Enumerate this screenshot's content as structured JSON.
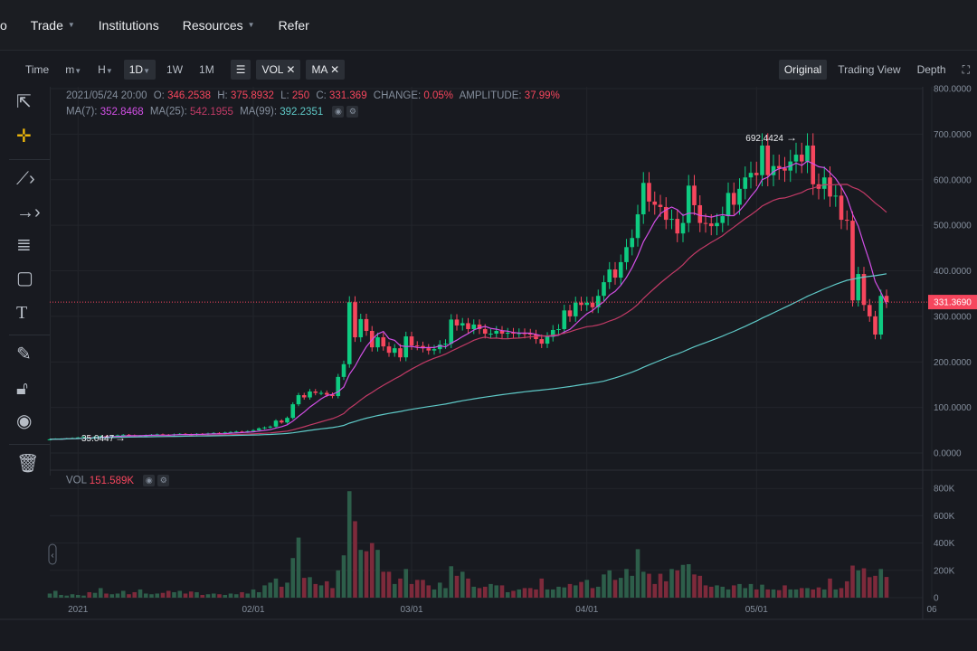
{
  "nav": {
    "partial_label": "o",
    "items": [
      {
        "label": "Trade",
        "dropdown": true
      },
      {
        "label": "Institutions",
        "dropdown": false
      },
      {
        "label": "Resources",
        "dropdown": true
      },
      {
        "label": "Refer",
        "dropdown": false
      }
    ]
  },
  "toolbar": {
    "time": "Time",
    "m": "m",
    "h": "H",
    "d1": "1D",
    "w1": "1W",
    "mo1": "1M",
    "vol_chip": "VOL",
    "ma_chip": "MA",
    "views": [
      "Original",
      "Trading View",
      "Depth"
    ],
    "active_view": "Original"
  },
  "tools": [
    "cursor-icon",
    "crosshair-icon",
    "trendline-icon",
    "arrow-icon",
    "fib-icon",
    "rectangle-icon",
    "text-icon",
    "edit-icon",
    "unlock-icon",
    "eye-icon",
    "trash-icon"
  ],
  "ohlc_info": {
    "datetime": "2021/05/24 20:00",
    "o_label": "O:",
    "o": "346.2538",
    "h_label": "H:",
    "h": "375.8932",
    "l_label": "L:",
    "l": "250",
    "c_label": "C:",
    "c": "331.369",
    "change_label": "CHANGE:",
    "change": "0.05%",
    "amp_label": "AMPLITUDE:",
    "amplitude": "37.99%"
  },
  "ma_info": {
    "ma7_label": "MA(7):",
    "ma7": "352.8468",
    "ma25_label": "MA(25):",
    "ma25": "542.1955",
    "ma99_label": "MA(99):",
    "ma99": "392.2351"
  },
  "vol_info": {
    "label": "VOL",
    "value": "151.589K"
  },
  "colors": {
    "up": "#0ecb81",
    "down": "#f6465d",
    "vol_up": "#2d5e4a",
    "vol_down": "#7d2a3b",
    "ma7": "#d24fe6",
    "ma25": "#c23a66",
    "ma99": "#5fcac8",
    "bg": "#181a20"
  },
  "chart_data": {
    "type": "candlestick",
    "interval": "1D",
    "price_ticks": [
      "0.0000",
      "100.0000",
      "200.0000",
      "300.0000",
      "400.0000",
      "500.0000",
      "600.0000",
      "700.0000",
      "800.0000"
    ],
    "ylim": [
      0,
      800
    ],
    "volume_ticks": [
      "0",
      "200K",
      "400K",
      "600K",
      "800K"
    ],
    "x_ticks": [
      "2021",
      "02/01",
      "03/01",
      "04/01",
      "05/01",
      "06"
    ],
    "current_price": "331.3690",
    "max_label": "692.4424",
    "min_label": "35.0447",
    "close": [
      30,
      31,
      31,
      32,
      33,
      34,
      35,
      34,
      36,
      37,
      36,
      38,
      39,
      40,
      39,
      37,
      38,
      39,
      40,
      41,
      40,
      39,
      41,
      42,
      41,
      40,
      42,
      41,
      43,
      44,
      43,
      45,
      46,
      47,
      46,
      48,
      50,
      54,
      56,
      58,
      71,
      67,
      77,
      107,
      127,
      122,
      135,
      132,
      132,
      128,
      125,
      167,
      195,
      331,
      254,
      294,
      268,
      232,
      254,
      234,
      220,
      230,
      210,
      256,
      236,
      235,
      230,
      225,
      228,
      238,
      240,
      293,
      280,
      285,
      272,
      282,
      272,
      262,
      262,
      268,
      262,
      264,
      262,
      263,
      262,
      260,
      250,
      240,
      255,
      270,
      272,
      313,
      300,
      330,
      325,
      330,
      320,
      345,
      375,
      403,
      385,
      419,
      452,
      472,
      524,
      593,
      552,
      545,
      540,
      512,
      514,
      482,
      505,
      587,
      544,
      505,
      504,
      498,
      505,
      520,
      571,
      545,
      580,
      605,
      615,
      610,
      675,
      610,
      630,
      625,
      620,
      640,
      655,
      640,
      675,
      590,
      580,
      605,
      563,
      565,
      512,
      510,
      335,
      393,
      325,
      300,
      260,
      345,
      331.369
    ],
    "volume_k": [
      30,
      50,
      20,
      15,
      25,
      20,
      15,
      40,
      35,
      70,
      30,
      25,
      30,
      50,
      25,
      40,
      60,
      30,
      25,
      30,
      35,
      50,
      40,
      50,
      30,
      45,
      40,
      20,
      25,
      30,
      25,
      20,
      30,
      25,
      40,
      30,
      60,
      40,
      90,
      110,
      140,
      80,
      110,
      290,
      440,
      145,
      150,
      100,
      90,
      120,
      70,
      200,
      310,
      780,
      560,
      350,
      340,
      400,
      350,
      190,
      190,
      100,
      140,
      210,
      100,
      130,
      130,
      90,
      60,
      110,
      70,
      230,
      160,
      190,
      140,
      80,
      70,
      80,
      100,
      90,
      90,
      40,
      50,
      60,
      70,
      70,
      60,
      140,
      60,
      60,
      80,
      75,
      100,
      90,
      115,
      130,
      70,
      80,
      170,
      200,
      130,
      145,
      210,
      160,
      355,
      190,
      175,
      100,
      175,
      120,
      210,
      200,
      240,
      245,
      170,
      160,
      90,
      80,
      90,
      80,
      60,
      90,
      100,
      70,
      100,
      60,
      95,
      60,
      60,
      55,
      90,
      60,
      60,
      70,
      70,
      60,
      75,
      60,
      140,
      60,
      70,
      120,
      235,
      200,
      215,
      150,
      160,
      210,
      151.589
    ],
    "ma_periods": [
      7,
      25,
      99
    ]
  }
}
